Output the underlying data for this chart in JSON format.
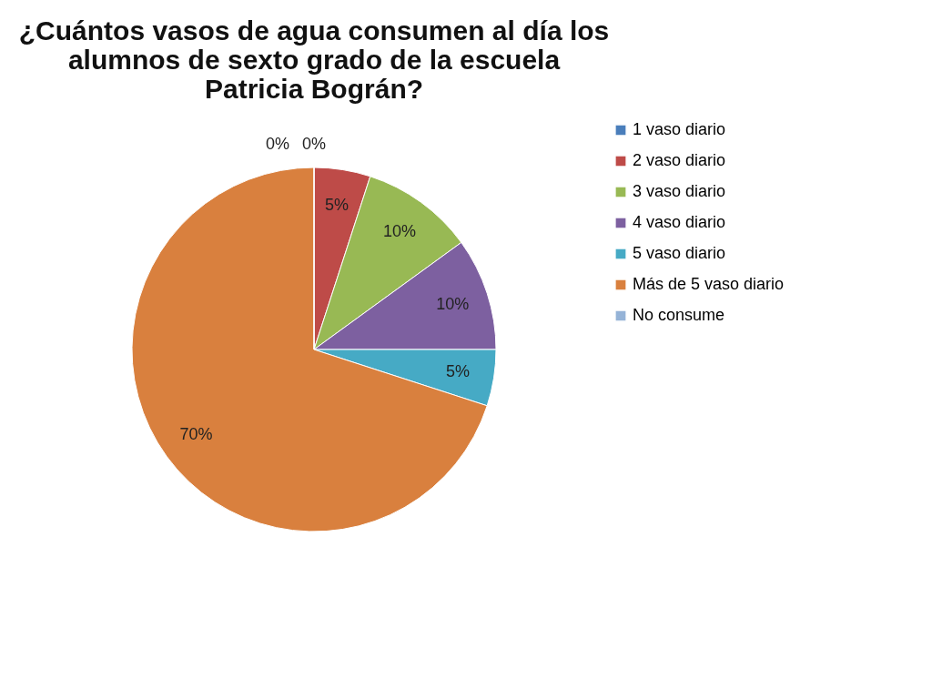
{
  "chart_data": {
    "type": "pie",
    "title": "¿Cuántos vasos de agua consumen al día los alumnos de sexto grado de la escuela Patricia Bográn?",
    "categories": [
      "1 vaso diario",
      "2 vaso diario",
      "3 vaso diario",
      "4 vaso diario",
      "5 vaso diario",
      "Más de 5 vaso diario",
      "No consume"
    ],
    "values": [
      0,
      5,
      10,
      10,
      5,
      70,
      0
    ],
    "value_labels": [
      "0%",
      "5%",
      "10%",
      "10%",
      "5%",
      "70%",
      "0%"
    ],
    "colors": [
      "#4a7ebb",
      "#be4b48",
      "#98b954",
      "#7d60a0",
      "#46aac5",
      "#d9803e",
      "#95b3d7"
    ],
    "legend": "right"
  }
}
